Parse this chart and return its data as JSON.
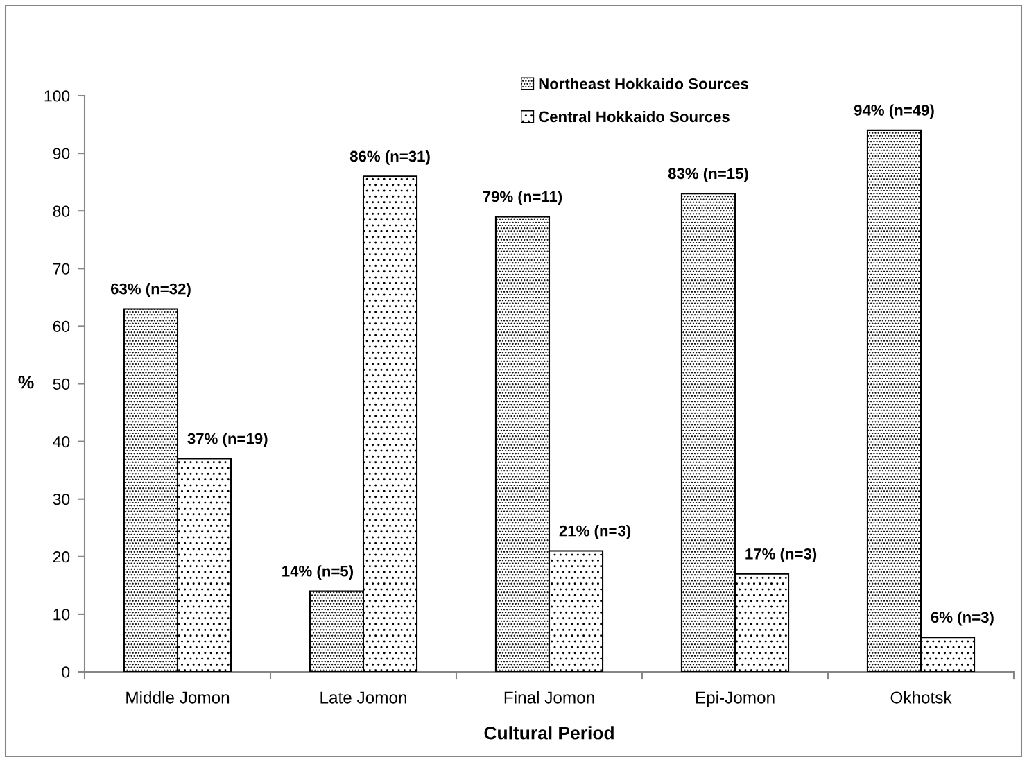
{
  "chart_data": {
    "type": "bar",
    "xlabel": "Cultural Period",
    "ylabel": "%",
    "categories": [
      "Middle Jomon",
      "Late Jomon",
      "Final Jomon",
      "Epi-Jomon",
      "Okhotsk"
    ],
    "series": [
      {
        "name": "Northeast Hokkaido Sources",
        "color": "#000000",
        "values": [
          63,
          14,
          79,
          83,
          94
        ],
        "value_labels": [
          "63% (n=32)",
          "14% (n=5)",
          "79% (n=11)",
          "83% (n=15)",
          "94% (n=49)"
        ]
      },
      {
        "name": "Central Hokkaido Sources",
        "color": "#000000",
        "values": [
          37,
          86,
          21,
          17,
          6
        ],
        "value_labels": [
          "37% (n=19)",
          "86% (n=31)",
          "21% (n=3)",
          "17% (n=3)",
          "6% (n=3)"
        ]
      }
    ],
    "ylim": [
      0,
      100
    ],
    "yticks": [
      0,
      10,
      20,
      30,
      40,
      50,
      60,
      70,
      80,
      90,
      100
    ],
    "grid": false,
    "legend": "top"
  }
}
